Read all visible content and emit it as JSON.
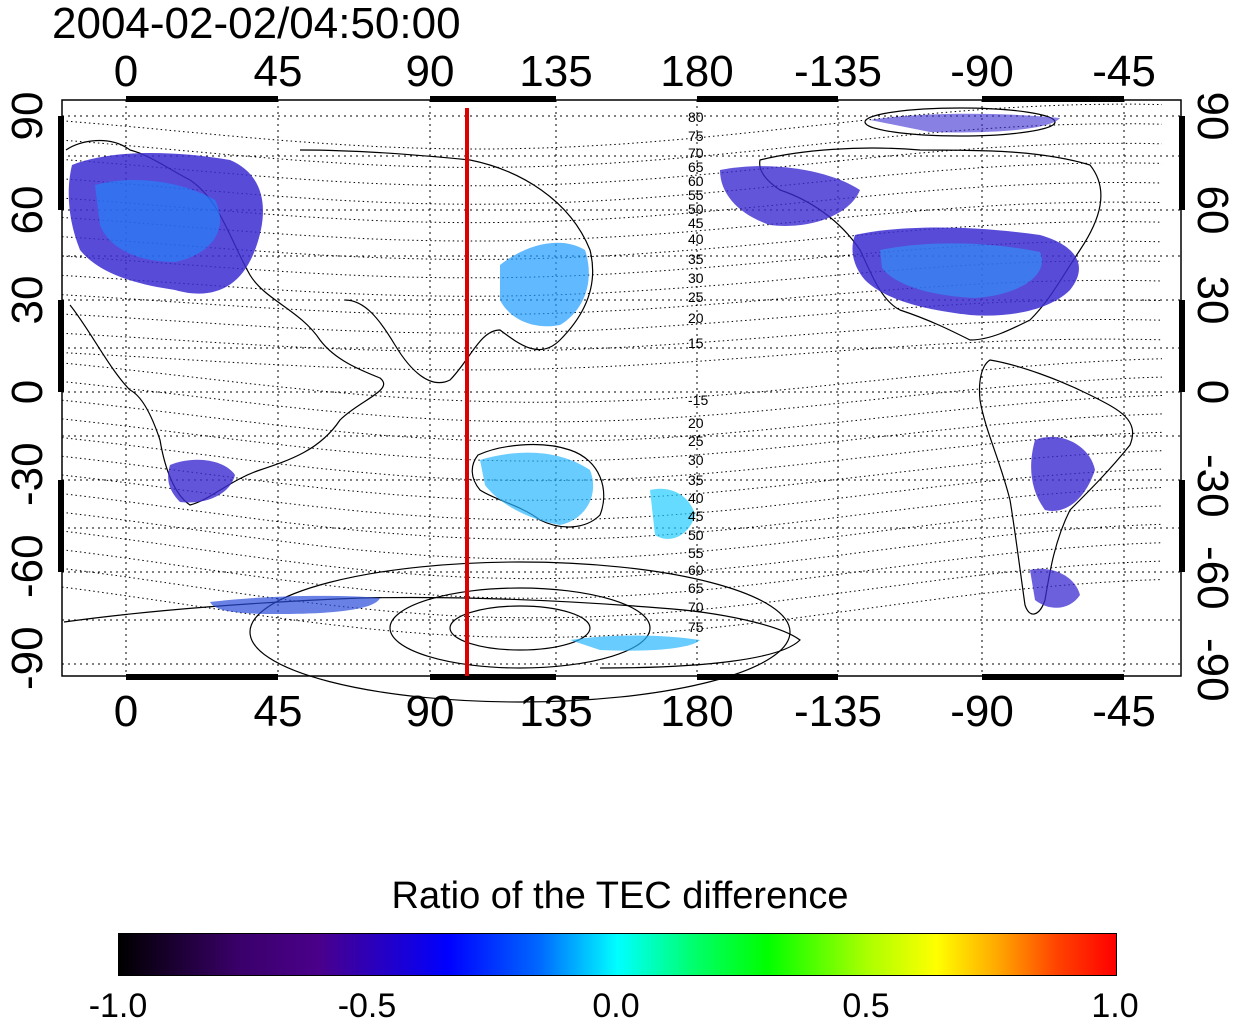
{
  "title": "2004-02-02/04:50:00",
  "longitude_ticks": [
    "0",
    "45",
    "90",
    "135",
    "180",
    "-135",
    "-90",
    "-45"
  ],
  "latitude_ticks": [
    "90",
    "60",
    "30",
    "0",
    "-30",
    "-60",
    "-90"
  ],
  "contour_labels_north": [
    "80",
    "75",
    "70",
    "65",
    "60",
    "55",
    "50",
    "45",
    "40",
    "35",
    "30",
    "25",
    "20",
    "15"
  ],
  "contour_labels_south": [
    "-15",
    "20",
    "25",
    "30",
    "35",
    "40",
    "45",
    "50",
    "55",
    "60",
    "65",
    "70",
    "75"
  ],
  "colorbar": {
    "title": "Ratio of the TEC difference",
    "ticks": [
      "-1.0",
      "-0.5",
      "0.0",
      "0.5",
      "1.0"
    ]
  },
  "colors": {
    "meridian_line": "#dd0000",
    "frame": "#000000"
  }
}
